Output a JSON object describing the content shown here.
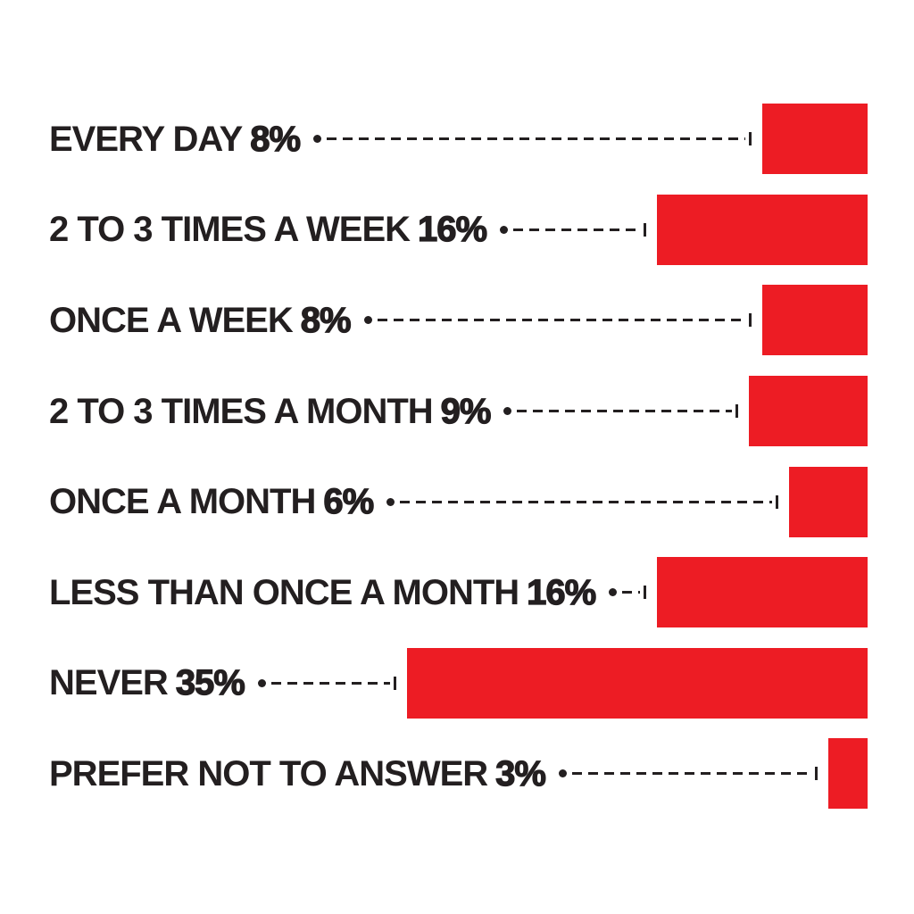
{
  "chart_data": {
    "type": "bar",
    "orientation": "horizontal",
    "bars_anchored": "right",
    "title": "",
    "xlabel": "",
    "ylabel": "",
    "legend": "none",
    "gridlines": false,
    "unit": "%",
    "xlim": [
      0,
      35
    ],
    "categories": [
      "EVERY DAY",
      "2 TO 3 TIMES A WEEK",
      "ONCE A WEEK",
      "2 TO 3 TIMES A MONTH",
      "ONCE A MONTH",
      "LESS THAN ONCE A MONTH",
      "NEVER",
      "PREFER NOT TO ANSWER"
    ],
    "values": [
      8,
      16,
      8,
      9,
      6,
      16,
      35,
      3
    ],
    "value_labels": [
      "8%",
      "16%",
      "8%",
      "9%",
      "6%",
      "16%",
      "35%",
      "3%"
    ],
    "bar_color": "#ED1C24",
    "label_color": "#231F20",
    "leader_line_style": "dashed-with-dot-and-tick",
    "background_color": "#FFFFFF"
  }
}
